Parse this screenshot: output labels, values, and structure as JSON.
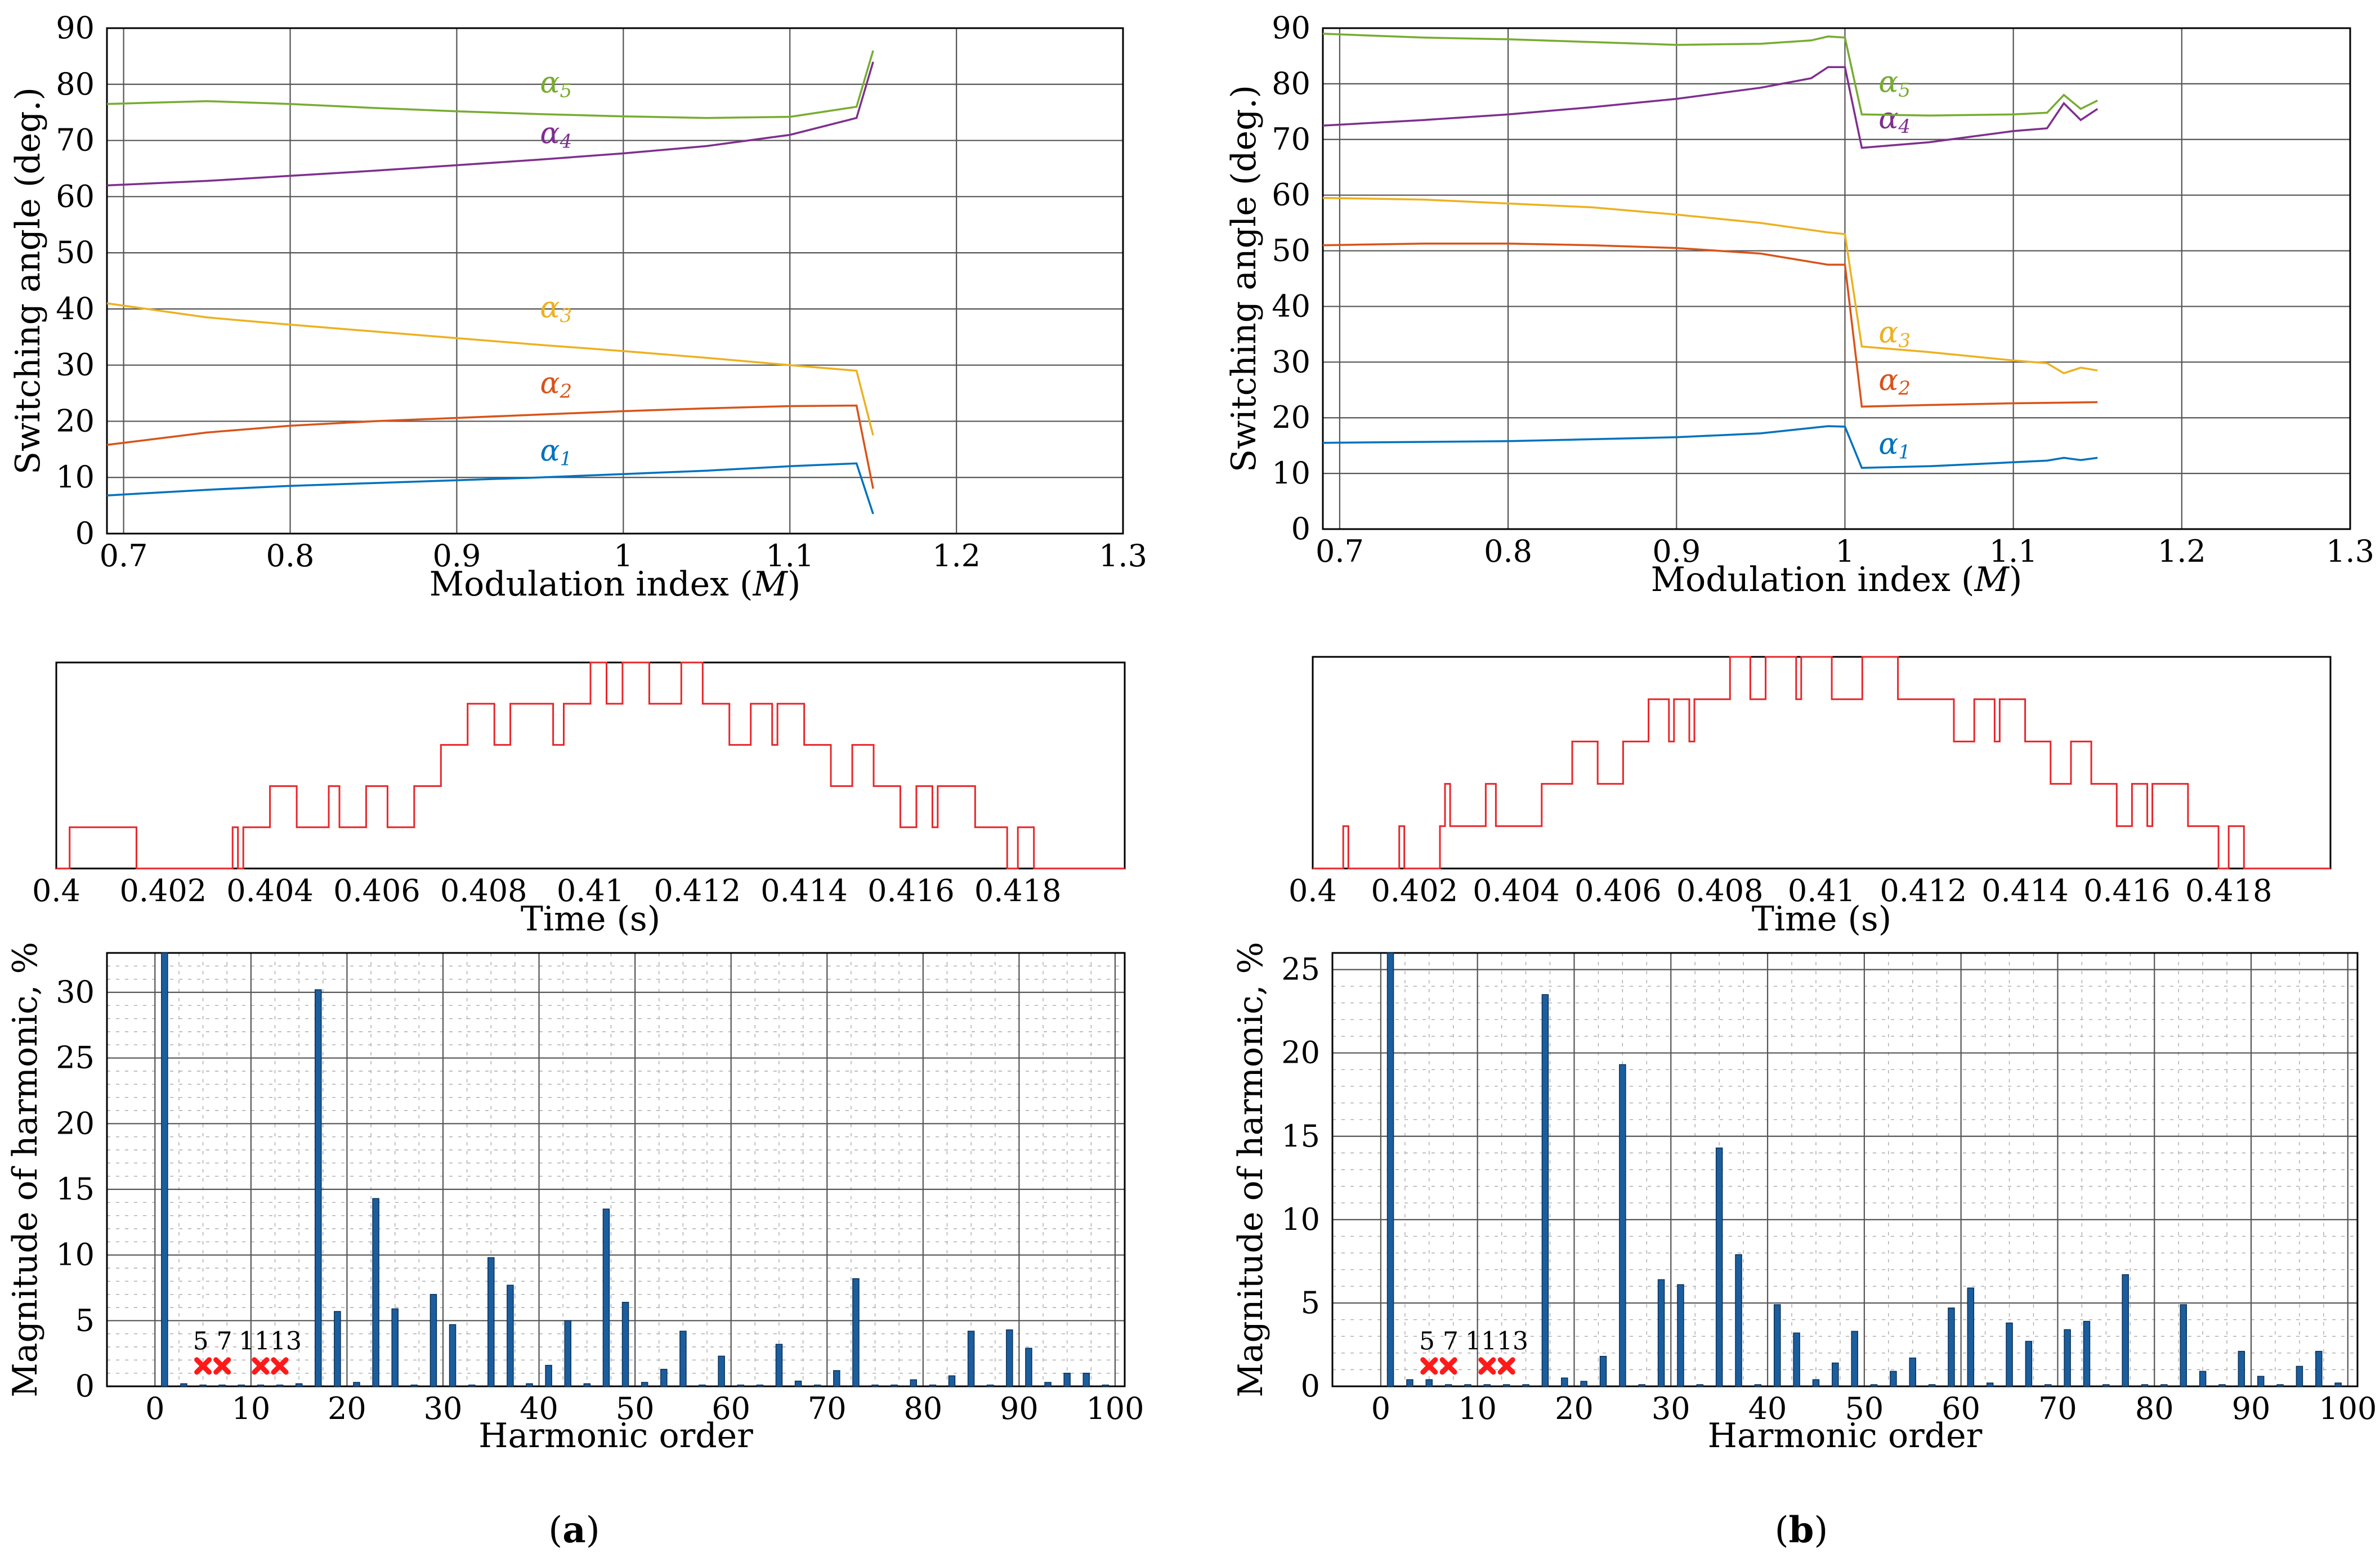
{
  "chart_data": [
    {
      "id": "a-top",
      "type": "line",
      "xlabel": "Modulation index (",
      "xlabel_sym": "M",
      "xlabel_end": ")",
      "ylabel": "Switching angle (deg.)",
      "xlim": [
        0.69,
        1.3
      ],
      "ylim": [
        0,
        90
      ],
      "xticks": [
        "0.7",
        "0.8",
        "0.9",
        "1",
        "1.1",
        "1.2",
        "1.3"
      ],
      "xtick_values": [
        0.7,
        0.8,
        0.9,
        1.0,
        1.1,
        1.2,
        1.3
      ],
      "yticks": [
        "0",
        "10",
        "20",
        "30",
        "40",
        "50",
        "60",
        "70",
        "80",
        "90"
      ],
      "ytick_values": [
        0,
        10,
        20,
        30,
        40,
        50,
        60,
        70,
        80,
        90
      ],
      "series": [
        {
          "name": "α1",
          "sym": "α",
          "sub": "1",
          "color": "#0072bd",
          "label_at": [
            0.95,
            13
          ],
          "x": [
            0.69,
            0.75,
            0.8,
            0.85,
            0.9,
            0.95,
            1.0,
            1.05,
            1.1,
            1.14,
            1.15
          ],
          "y": [
            6.8,
            7.8,
            8.5,
            9.0,
            9.5,
            10.0,
            10.6,
            11.2,
            12.0,
            12.5,
            3.5
          ]
        },
        {
          "name": "α2",
          "sym": "α",
          "sub": "2",
          "color": "#d95319",
          "label_at": [
            0.95,
            25
          ],
          "x": [
            0.69,
            0.75,
            0.8,
            0.85,
            0.9,
            0.95,
            1.0,
            1.05,
            1.1,
            1.14,
            1.15
          ],
          "y": [
            15.8,
            18.0,
            19.2,
            20.0,
            20.6,
            21.2,
            21.8,
            22.3,
            22.7,
            22.8,
            8.0
          ]
        },
        {
          "name": "α3",
          "sym": "α",
          "sub": "3",
          "color": "#edb120",
          "label_at": [
            0.95,
            38.5
          ],
          "x": [
            0.69,
            0.75,
            0.8,
            0.85,
            0.9,
            0.95,
            1.0,
            1.05,
            1.1,
            1.14,
            1.15
          ],
          "y": [
            41.0,
            38.5,
            37.2,
            36.0,
            34.8,
            33.6,
            32.5,
            31.3,
            30.0,
            29.0,
            17.5
          ]
        },
        {
          "name": "α4",
          "sym": "α",
          "sub": "4",
          "color": "#7e2f8e",
          "label_at": [
            0.95,
            69.5
          ],
          "x": [
            0.69,
            0.75,
            0.8,
            0.85,
            0.9,
            0.95,
            1.0,
            1.05,
            1.1,
            1.14,
            1.15
          ],
          "y": [
            62.0,
            62.8,
            63.7,
            64.6,
            65.6,
            66.6,
            67.7,
            69.0,
            71.0,
            74.0,
            84.0
          ]
        },
        {
          "name": "α5",
          "sym": "α",
          "sub": "5",
          "color": "#77ac30",
          "label_at": [
            0.95,
            78.5
          ],
          "x": [
            0.69,
            0.75,
            0.8,
            0.85,
            0.9,
            0.95,
            1.0,
            1.05,
            1.1,
            1.14,
            1.15
          ],
          "y": [
            76.5,
            77.0,
            76.5,
            75.8,
            75.2,
            74.7,
            74.3,
            74.0,
            74.2,
            76.0,
            86.0
          ]
        }
      ]
    },
    {
      "id": "b-top",
      "type": "line",
      "xlabel": "Modulation index (",
      "xlabel_sym": "M",
      "xlabel_end": ")",
      "ylabel": "Switching angle (deg.)",
      "xlim": [
        0.69,
        1.3
      ],
      "ylim": [
        0,
        90
      ],
      "xticks": [
        "0.7",
        "0.8",
        "0.9",
        "1",
        "1.1",
        "1.2",
        "1.3"
      ],
      "xtick_values": [
        0.7,
        0.8,
        0.9,
        1.0,
        1.1,
        1.2,
        1.3
      ],
      "yticks": [
        "0",
        "10",
        "20",
        "30",
        "40",
        "50",
        "60",
        "70",
        "80",
        "90"
      ],
      "ytick_values": [
        0,
        10,
        20,
        30,
        40,
        50,
        60,
        70,
        80,
        90
      ],
      "series": [
        {
          "name": "α1",
          "sym": "α",
          "sub": "1",
          "color": "#0072bd",
          "label_at": [
            1.02,
            13.5
          ],
          "x": [
            0.69,
            0.8,
            0.9,
            0.95,
            0.99,
            1.0,
            1.01,
            1.05,
            1.1,
            1.12,
            1.13,
            1.14,
            1.15
          ],
          "y": [
            15.5,
            15.8,
            16.5,
            17.2,
            18.5,
            18.4,
            11.0,
            11.3,
            12.0,
            12.3,
            12.8,
            12.4,
            12.8
          ]
        },
        {
          "name": "α2",
          "sym": "α",
          "sub": "2",
          "color": "#d95319",
          "label_at": [
            1.02,
            25
          ],
          "x": [
            0.69,
            0.75,
            0.8,
            0.85,
            0.9,
            0.95,
            0.99,
            1.0,
            1.01,
            1.05,
            1.1,
            1.15
          ],
          "y": [
            51.0,
            51.3,
            51.3,
            51.0,
            50.5,
            49.5,
            47.5,
            47.5,
            22.0,
            22.3,
            22.6,
            22.8
          ]
        },
        {
          "name": "α3",
          "sym": "α",
          "sub": "3",
          "color": "#edb120",
          "label_at": [
            1.02,
            33.5
          ],
          "x": [
            0.69,
            0.75,
            0.8,
            0.85,
            0.9,
            0.95,
            0.99,
            1.0,
            1.01,
            1.05,
            1.1,
            1.12,
            1.13,
            1.14,
            1.15
          ],
          "y": [
            59.5,
            59.2,
            58.5,
            57.8,
            56.5,
            55.0,
            53.3,
            53.0,
            32.8,
            31.8,
            30.3,
            29.8,
            28.0,
            29.0,
            28.5
          ]
        },
        {
          "name": "α4",
          "sym": "α",
          "sub": "4",
          "color": "#7e2f8e",
          "label_at": [
            1.02,
            72
          ],
          "x": [
            0.69,
            0.75,
            0.8,
            0.85,
            0.9,
            0.95,
            0.98,
            0.99,
            1.0,
            1.01,
            1.05,
            1.1,
            1.12,
            1.13,
            1.14,
            1.15
          ],
          "y": [
            72.5,
            73.5,
            74.5,
            75.8,
            77.3,
            79.3,
            81.0,
            83.0,
            83.0,
            68.5,
            69.5,
            71.5,
            72.0,
            76.5,
            73.5,
            75.5
          ]
        },
        {
          "name": "α5",
          "sym": "α",
          "sub": "5",
          "color": "#77ac30",
          "label_at": [
            1.02,
            78.5
          ],
          "x": [
            0.69,
            0.75,
            0.8,
            0.85,
            0.9,
            0.95,
            0.98,
            0.99,
            1.0,
            1.01,
            1.05,
            1.1,
            1.12,
            1.13,
            1.14,
            1.15
          ],
          "y": [
            89.0,
            88.3,
            88.0,
            87.5,
            87.0,
            87.2,
            87.8,
            88.5,
            88.3,
            74.5,
            74.3,
            74.5,
            74.8,
            78.0,
            75.5,
            77.0
          ]
        }
      ]
    },
    {
      "id": "a-mid",
      "type": "line",
      "xlabel": "Time (s)",
      "xlim": [
        0.4,
        0.42
      ],
      "xticks": [
        "0.4",
        "0.402",
        "0.404",
        "0.406",
        "0.408",
        "0.41",
        "0.412",
        "0.414",
        "0.416",
        "0.418"
      ],
      "xtick_values": [
        0.4,
        0.402,
        0.404,
        0.406,
        0.408,
        0.41,
        0.412,
        0.414,
        0.416,
        0.418
      ],
      "ylim": [
        0,
        5
      ],
      "color": "#e8262a",
      "steps": [
        [
          0.4,
          0
        ],
        [
          0.40025,
          1
        ],
        [
          0.4015,
          0
        ],
        [
          0.4033,
          1
        ],
        [
          0.4034,
          0
        ],
        [
          0.4035,
          1
        ],
        [
          0.404,
          2
        ],
        [
          0.4045,
          1
        ],
        [
          0.4051,
          2
        ],
        [
          0.4053,
          1
        ],
        [
          0.4058,
          2
        ],
        [
          0.4062,
          1
        ],
        [
          0.4067,
          2
        ],
        [
          0.4072,
          3
        ],
        [
          0.4077,
          4
        ],
        [
          0.4082,
          3
        ],
        [
          0.4085,
          4
        ],
        [
          0.4093,
          3
        ],
        [
          0.4095,
          4
        ],
        [
          0.41,
          5
        ],
        [
          0.4103,
          4
        ],
        [
          0.4106,
          5
        ],
        [
          0.4111,
          4
        ],
        [
          0.4117,
          5
        ],
        [
          0.4121,
          4
        ],
        [
          0.4126,
          3
        ],
        [
          0.413,
          4
        ],
        [
          0.4134,
          3
        ],
        [
          0.4135,
          4
        ],
        [
          0.414,
          3
        ],
        [
          0.4145,
          2
        ],
        [
          0.4149,
          3
        ],
        [
          0.4153,
          2
        ],
        [
          0.4158,
          1
        ],
        [
          0.4161,
          2
        ],
        [
          0.4164,
          1
        ],
        [
          0.4165,
          2
        ],
        [
          0.4172,
          1
        ],
        [
          0.4178,
          0
        ],
        [
          0.418,
          1
        ],
        [
          0.4183,
          0
        ],
        [
          0.4199,
          0
        ]
      ]
    },
    {
      "id": "b-mid",
      "type": "line",
      "xlabel": "Time (s)",
      "xlim": [
        0.4,
        0.42
      ],
      "xticks": [
        "0.4",
        "0.402",
        "0.404",
        "0.406",
        "0.408",
        "0.41",
        "0.412",
        "0.414",
        "0.416",
        "0.418"
      ],
      "xtick_values": [
        0.4,
        0.402,
        0.404,
        0.406,
        0.408,
        0.41,
        0.412,
        0.414,
        0.416,
        0.418
      ],
      "ylim": [
        0,
        5
      ],
      "color": "#e8262a",
      "steps": [
        [
          0.4,
          0
        ],
        [
          0.4006,
          1
        ],
        [
          0.4007,
          0
        ],
        [
          0.4017,
          1
        ],
        [
          0.4018,
          0
        ],
        [
          0.4025,
          1
        ],
        [
          0.4026,
          2
        ],
        [
          0.4027,
          1
        ],
        [
          0.4034,
          2
        ],
        [
          0.4036,
          1
        ],
        [
          0.4045,
          2
        ],
        [
          0.4051,
          3
        ],
        [
          0.4056,
          2
        ],
        [
          0.4061,
          3
        ],
        [
          0.4066,
          4
        ],
        [
          0.407,
          3
        ],
        [
          0.4071,
          4
        ],
        [
          0.4074,
          3
        ],
        [
          0.4075,
          4
        ],
        [
          0.4082,
          5
        ],
        [
          0.4086,
          4
        ],
        [
          0.4089,
          5
        ],
        [
          0.4095,
          4
        ],
        [
          0.4096,
          5
        ],
        [
          0.4102,
          4
        ],
        [
          0.4108,
          5
        ],
        [
          0.4115,
          4
        ],
        [
          0.4126,
          3
        ],
        [
          0.413,
          4
        ],
        [
          0.4134,
          3
        ],
        [
          0.4135,
          4
        ],
        [
          0.414,
          3
        ],
        [
          0.4145,
          2
        ],
        [
          0.4149,
          3
        ],
        [
          0.4153,
          2
        ],
        [
          0.4158,
          1
        ],
        [
          0.4161,
          2
        ],
        [
          0.4164,
          1
        ],
        [
          0.4165,
          2
        ],
        [
          0.4172,
          1
        ],
        [
          0.4178,
          0
        ],
        [
          0.418,
          1
        ],
        [
          0.4183,
          0
        ],
        [
          0.4199,
          0
        ]
      ]
    },
    {
      "id": "a-bot",
      "type": "bar",
      "xlabel": "Harmonic order",
      "ylabel": "Magnitude of harmonic, %",
      "xlim": [
        -5,
        101
      ],
      "ylim": [
        0,
        33
      ],
      "xticks": [
        "0",
        "10",
        "20",
        "30",
        "40",
        "50",
        "60",
        "70",
        "80",
        "90",
        "100"
      ],
      "xtick_values": [
        0,
        10,
        20,
        30,
        40,
        50,
        60,
        70,
        80,
        90,
        100
      ],
      "yticks": [
        "0",
        "5",
        "10",
        "15",
        "20",
        "25",
        "30"
      ],
      "ytick_values": [
        0,
        5,
        10,
        15,
        20,
        25,
        30
      ],
      "eliminated": [
        5,
        7,
        11,
        13
      ],
      "eliminated_labels": [
        "5 7",
        "1113"
      ],
      "x": [
        1,
        3,
        5,
        7,
        9,
        11,
        13,
        15,
        17,
        19,
        21,
        23,
        25,
        27,
        29,
        31,
        33,
        35,
        37,
        39,
        41,
        43,
        45,
        47,
        49,
        51,
        53,
        55,
        57,
        59,
        61,
        63,
        65,
        67,
        69,
        71,
        73,
        75,
        77,
        79,
        81,
        83,
        85,
        87,
        89,
        91,
        93,
        95,
        97,
        99
      ],
      "values": [
        33,
        0.2,
        0.1,
        0.1,
        0.1,
        0.1,
        0.1,
        0.2,
        30.2,
        5.7,
        0.3,
        14.3,
        5.9,
        0.1,
        7.0,
        4.7,
        0.1,
        9.8,
        7.7,
        0.2,
        1.6,
        5.0,
        0.2,
        13.5,
        6.4,
        0.3,
        1.3,
        4.2,
        0.1,
        2.3,
        0.1,
        0.1,
        3.2,
        0.4,
        0.1,
        1.2,
        8.2,
        0.1,
        0.1,
        0.5,
        0.1,
        0.8,
        4.2,
        0.1,
        4.3,
        2.9,
        0.3,
        1.0,
        1.0,
        0.1
      ]
    },
    {
      "id": "b-bot",
      "type": "bar",
      "xlabel": "Harmonic order",
      "ylabel": "Magnitude of harmonic, %",
      "xlim": [
        -5,
        101
      ],
      "ylim": [
        0,
        26
      ],
      "xticks": [
        "0",
        "10",
        "20",
        "30",
        "40",
        "50",
        "60",
        "70",
        "80",
        "90",
        "100"
      ],
      "xtick_values": [
        0,
        10,
        20,
        30,
        40,
        50,
        60,
        70,
        80,
        90,
        100
      ],
      "yticks": [
        "0",
        "5",
        "10",
        "15",
        "20",
        "25"
      ],
      "ytick_values": [
        0,
        5,
        10,
        15,
        20,
        25
      ],
      "eliminated": [
        5,
        7,
        11,
        13
      ],
      "eliminated_labels": [
        "5 7",
        "1113"
      ],
      "x": [
        1,
        3,
        5,
        7,
        9,
        11,
        13,
        15,
        17,
        19,
        21,
        23,
        25,
        27,
        29,
        31,
        33,
        35,
        37,
        39,
        41,
        43,
        45,
        47,
        49,
        51,
        53,
        55,
        57,
        59,
        61,
        63,
        65,
        67,
        69,
        71,
        73,
        75,
        77,
        79,
        81,
        83,
        85,
        87,
        89,
        91,
        93,
        95,
        97,
        99
      ],
      "values": [
        26,
        0.4,
        0.4,
        0.1,
        0.1,
        0.1,
        0.1,
        0.1,
        23.5,
        0.5,
        0.3,
        1.8,
        19.3,
        0.1,
        6.4,
        6.1,
        0.1,
        14.3,
        7.9,
        0.1,
        4.9,
        3.2,
        0.4,
        1.4,
        3.3,
        0.1,
        0.9,
        1.7,
        0.1,
        4.7,
        5.9,
        0.2,
        3.8,
        2.7,
        0.1,
        3.4,
        3.9,
        0.1,
        6.7,
        0.1,
        0.1,
        4.9,
        0.9,
        0.1,
        2.1,
        0.6,
        0.1,
        1.2,
        2.1,
        0.2
      ]
    }
  ],
  "panel_labels": {
    "a": {
      "open": "(",
      "letter": "a",
      "close": ")"
    },
    "b": {
      "open": "(",
      "letter": "b",
      "close": ")"
    }
  }
}
